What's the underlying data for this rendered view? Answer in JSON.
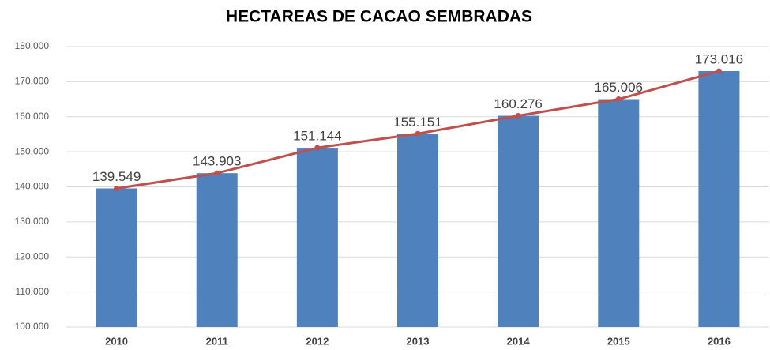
{
  "chart_data": {
    "type": "bar",
    "title": "HECTAREAS DE CACAO SEMBRADAS",
    "categories": [
      "2010",
      "2011",
      "2012",
      "2013",
      "2014",
      "2015",
      "2016"
    ],
    "values": [
      139549,
      143903,
      151144,
      155151,
      160276,
      165006,
      173016
    ],
    "value_labels": [
      "139.549",
      "143.903",
      "151.144",
      "155.151",
      "160.276",
      "165.006",
      "173.016"
    ],
    "color": "#4f81bd",
    "line_color": "#c0504d",
    "ylim": [
      100000,
      180000
    ],
    "yticks": [
      {
        "value": 100000,
        "label": "100.000"
      },
      {
        "value": 110000,
        "label": "110.000"
      },
      {
        "value": 120000,
        "label": "120.000"
      },
      {
        "value": 130000,
        "label": "130.000"
      },
      {
        "value": 140000,
        "label": "140.000"
      },
      {
        "value": 150000,
        "label": "150.000"
      },
      {
        "value": 160000,
        "label": "160.000"
      },
      {
        "value": 170000,
        "label": "170.000"
      },
      {
        "value": 180000,
        "label": "180.000"
      }
    ],
    "grid": true
  }
}
